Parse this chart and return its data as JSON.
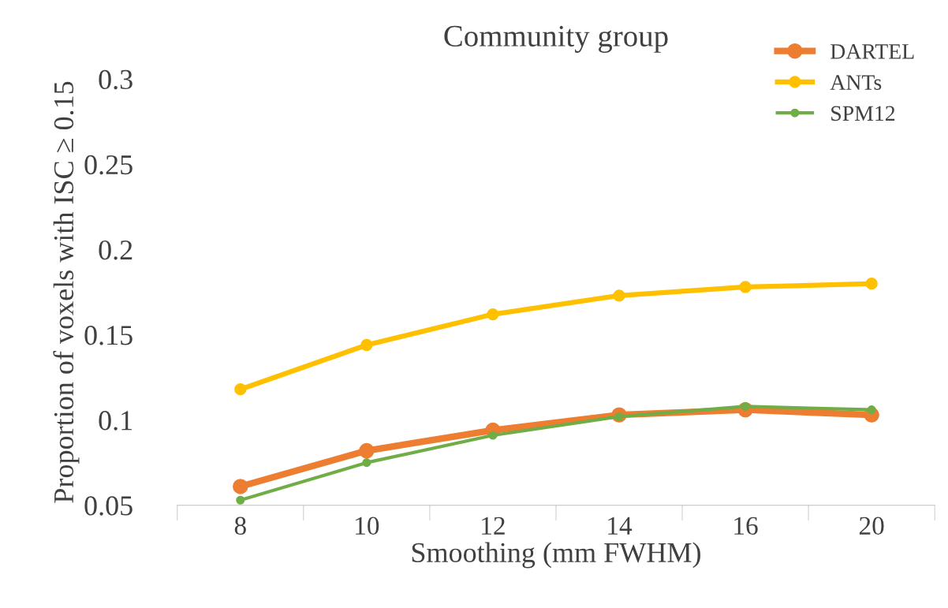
{
  "chart_data": {
    "type": "line",
    "title": "Community group",
    "xlabel": "Smoothing (mm FWHM)",
    "ylabel": "Proportion of voxels with ISC ≥ 0.15",
    "categories": [
      "8",
      "10",
      "12",
      "14",
      "16",
      "20"
    ],
    "series": [
      {
        "name": "DARTEL",
        "color": "#ed7d31",
        "values": [
          0.061,
          0.082,
          0.094,
          0.103,
          0.106,
          0.103
        ]
      },
      {
        "name": "ANTs",
        "color": "#ffc000",
        "values": [
          0.118,
          0.144,
          0.162,
          0.173,
          0.178,
          0.18
        ]
      },
      {
        "name": "SPM12",
        "color": "#70ad47",
        "values": [
          0.053,
          0.075,
          0.091,
          0.102,
          0.108,
          0.106
        ]
      }
    ],
    "ylim": [
      0.05,
      0.3
    ],
    "yticks": [
      0.05,
      0.1,
      0.15,
      0.2,
      0.25,
      0.3
    ],
    "marker": "circle",
    "line_style": "solid",
    "legend": "top right",
    "grid": false
  }
}
